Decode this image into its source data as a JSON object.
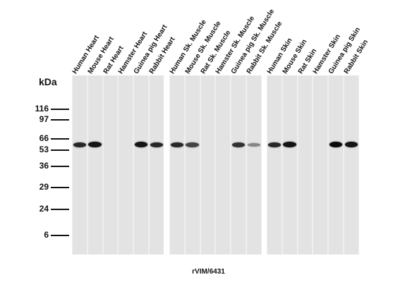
{
  "lanes": [
    "Human Heart",
    "Mouse Heart",
    "Rat Heart",
    "Hamster Heart",
    "Guinea pig Heart",
    "Rabbit Heart",
    "Human Sk. Muscle",
    "Mouse Sk. Muscle",
    "Rat Sk. Muscle",
    "Hamster Sk. Muscle",
    "Guinea pig Sk. Muscle",
    "Rabbit Sk. Muscle",
    "Human Skin",
    "Mouse Skin",
    "Rat Skin",
    "Hamster Skin",
    "Guinea pig Skin",
    "Rabbit Skin"
  ],
  "kda_title": "kDa",
  "markers": [
    "116",
    "97",
    "66",
    "53",
    "36",
    "29",
    "24",
    "6"
  ],
  "bands": [
    {
      "lane": "Human Heart",
      "intensity": 0.85
    },
    {
      "lane": "Mouse Heart",
      "intensity": 0.95
    },
    {
      "lane": "Guinea pig Heart",
      "intensity": 0.95
    },
    {
      "lane": "Rabbit Heart",
      "intensity": 0.85
    },
    {
      "lane": "Human Sk. Muscle",
      "intensity": 0.85
    },
    {
      "lane": "Mouse Sk. Muscle",
      "intensity": 0.7
    },
    {
      "lane": "Guinea pig Sk. Muscle",
      "intensity": 0.8
    },
    {
      "lane": "Rabbit Sk. Muscle",
      "intensity": 0.35
    },
    {
      "lane": "Human Skin",
      "intensity": 0.85
    },
    {
      "lane": "Mouse Skin",
      "intensity": 0.95
    },
    {
      "lane": "Guinea pig Skin",
      "intensity": 1.0
    },
    {
      "lane": "Rabbit Skin",
      "intensity": 0.95
    }
  ],
  "bottom_label": "rVIM/6431"
}
